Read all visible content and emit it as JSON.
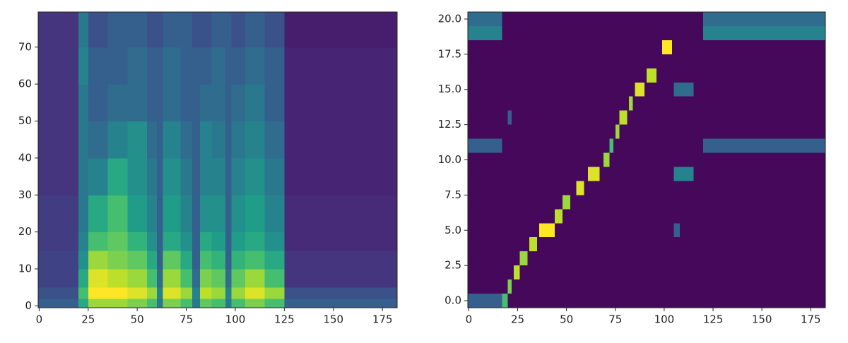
{
  "chart_data": [
    {
      "type": "heatmap",
      "colormap": "viridis",
      "zlim": [
        0,
        1
      ],
      "xlim": [
        -0.5,
        182.5
      ],
      "ylim": [
        -0.5,
        79.5
      ],
      "xticks": [
        0,
        25,
        50,
        75,
        100,
        125,
        150,
        175
      ],
      "yticks": [
        0,
        10,
        20,
        30,
        40,
        50,
        60,
        70
      ],
      "x_edges": [
        -0.5,
        20,
        25,
        35,
        45,
        55,
        60,
        63,
        72,
        78,
        82,
        88,
        95,
        98,
        105,
        115,
        125,
        182.5
      ],
      "y_edges": [
        -0.5,
        2,
        5,
        10,
        15,
        20,
        30,
        40,
        50,
        60,
        70,
        79.5
      ],
      "z": [
        [
          0.3,
          0.6,
          0.85,
          0.85,
          0.8,
          0.7,
          0.4,
          0.8,
          0.7,
          0.4,
          0.75,
          0.7,
          0.4,
          0.7,
          0.8,
          0.7,
          0.3
        ],
        [
          0.25,
          0.7,
          1,
          1,
          0.95,
          0.85,
          0.45,
          0.95,
          0.85,
          0.45,
          0.9,
          0.85,
          0.45,
          0.85,
          0.95,
          0.85,
          0.25
        ],
        [
          0.2,
          0.6,
          0.95,
          0.9,
          0.85,
          0.7,
          0.35,
          0.85,
          0.7,
          0.35,
          0.8,
          0.75,
          0.35,
          0.75,
          0.85,
          0.7,
          0.15
        ],
        [
          0.2,
          0.5,
          0.85,
          0.8,
          0.75,
          0.6,
          0.3,
          0.75,
          0.6,
          0.3,
          0.7,
          0.65,
          0.3,
          0.65,
          0.7,
          0.6,
          0.15
        ],
        [
          0.18,
          0.45,
          0.7,
          0.75,
          0.65,
          0.5,
          0.3,
          0.6,
          0.5,
          0.3,
          0.6,
          0.55,
          0.3,
          0.55,
          0.6,
          0.5,
          0.12
        ],
        [
          0.18,
          0.4,
          0.6,
          0.7,
          0.55,
          0.45,
          0.3,
          0.55,
          0.45,
          0.3,
          0.5,
          0.5,
          0.3,
          0.5,
          0.55,
          0.45,
          0.12
        ],
        [
          0.15,
          0.4,
          0.45,
          0.6,
          0.5,
          0.4,
          0.3,
          0.5,
          0.4,
          0.3,
          0.45,
          0.45,
          0.3,
          0.45,
          0.5,
          0.4,
          0.1
        ],
        [
          0.15,
          0.4,
          0.35,
          0.45,
          0.5,
          0.35,
          0.3,
          0.45,
          0.35,
          0.3,
          0.45,
          0.4,
          0.3,
          0.4,
          0.45,
          0.35,
          0.1
        ],
        [
          0.15,
          0.4,
          0.3,
          0.35,
          0.35,
          0.3,
          0.3,
          0.35,
          0.3,
          0.3,
          0.35,
          0.35,
          0.3,
          0.35,
          0.4,
          0.3,
          0.1
        ],
        [
          0.15,
          0.45,
          0.3,
          0.3,
          0.35,
          0.3,
          0.3,
          0.35,
          0.3,
          0.3,
          0.3,
          0.35,
          0.3,
          0.3,
          0.35,
          0.3,
          0.1
        ],
        [
          0.15,
          0.4,
          0.25,
          0.3,
          0.3,
          0.25,
          0.25,
          0.3,
          0.3,
          0.25,
          0.25,
          0.3,
          0.3,
          0.25,
          0.3,
          0.25,
          0.08
        ]
      ]
    },
    {
      "type": "alignment",
      "colormap": "viridis",
      "zlim": [
        0,
        1
      ],
      "background": 0.02,
      "xlim": [
        -0.5,
        182.5
      ],
      "ylim": [
        -0.5,
        20.5
      ],
      "xticks": [
        0,
        25,
        50,
        75,
        100,
        125,
        150,
        175
      ],
      "yticks": [
        {
          "value": 0,
          "label": "0.0"
        },
        2.5,
        {
          "value": 5,
          "label": "5.0"
        },
        7.5,
        {
          "value": 10,
          "label": "10.0"
        },
        12.5,
        {
          "value": 15,
          "label": "15.0"
        },
        17.5,
        {
          "value": 20,
          "label": "20.0"
        }
      ],
      "cells": [
        {
          "row": 0,
          "x": [
            -0.5,
            17
          ],
          "value": 0.3
        },
        {
          "row": 0,
          "x": [
            17,
            20
          ],
          "value": 0.7
        },
        {
          "row": 1,
          "x": [
            20,
            22
          ],
          "value": 0.8
        },
        {
          "row": 2,
          "x": [
            23,
            26
          ],
          "value": 0.9
        },
        {
          "row": 3,
          "x": [
            26,
            30
          ],
          "value": 0.85
        },
        {
          "row": 4,
          "x": [
            31,
            35
          ],
          "value": 0.9
        },
        {
          "row": 5,
          "x": [
            36,
            44
          ],
          "value": 1
        },
        {
          "row": 5,
          "x": [
            105,
            108
          ],
          "value": 0.3
        },
        {
          "row": 6,
          "x": [
            44,
            48
          ],
          "value": 0.9
        },
        {
          "row": 7,
          "x": [
            48,
            52
          ],
          "value": 0.85
        },
        {
          "row": 8,
          "x": [
            55,
            59
          ],
          "value": 0.95
        },
        {
          "row": 9,
          "x": [
            61,
            67
          ],
          "value": 0.95
        },
        {
          "row": 9,
          "x": [
            105,
            115
          ],
          "value": 0.45
        },
        {
          "row": 10,
          "x": [
            69,
            72
          ],
          "value": 0.85
        },
        {
          "row": 11,
          "x": [
            -0.5,
            17
          ],
          "value": 0.3
        },
        {
          "row": 11,
          "x": [
            72,
            74
          ],
          "value": 0.7
        },
        {
          "row": 11,
          "x": [
            120,
            182.5
          ],
          "value": 0.3
        },
        {
          "row": 12,
          "x": [
            75,
            77
          ],
          "value": 0.85
        },
        {
          "row": 13,
          "x": [
            20,
            22
          ],
          "value": 0.3
        },
        {
          "row": 13,
          "x": [
            77,
            81
          ],
          "value": 0.9
        },
        {
          "row": 14,
          "x": [
            82,
            84
          ],
          "value": 0.85
        },
        {
          "row": 15,
          "x": [
            85,
            90
          ],
          "value": 0.95
        },
        {
          "row": 15,
          "x": [
            105,
            115
          ],
          "value": 0.35
        },
        {
          "row": 16,
          "x": [
            91,
            96
          ],
          "value": 0.9
        },
        {
          "row": 18,
          "x": [
            99,
            104
          ],
          "value": 1
        },
        {
          "row": 19,
          "x": [
            -0.5,
            17
          ],
          "value": 0.45
        },
        {
          "row": 19,
          "x": [
            120,
            182.5
          ],
          "value": 0.45
        },
        {
          "row": 20,
          "x": [
            -0.5,
            17
          ],
          "value": 0.35
        },
        {
          "row": 20,
          "x": [
            120,
            182.5
          ],
          "value": 0.35
        }
      ]
    }
  ]
}
